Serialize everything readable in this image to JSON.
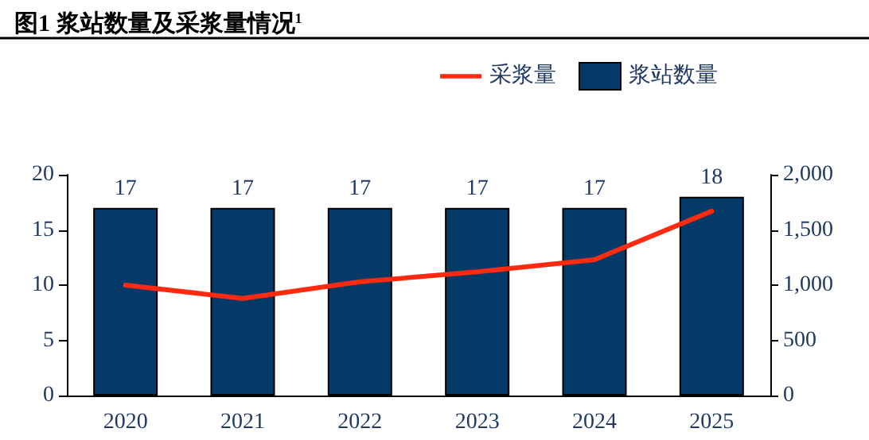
{
  "chart_data": {
    "type": "bar",
    "title": "图1 浆站数量及采浆量情况$^{1}$",
    "categories": [
      "2020",
      "2021",
      "2022",
      "2023",
      "2024",
      "2025"
    ],
    "series": [
      {
        "name": "采浆量",
        "type": "line",
        "axis": "y2",
        "color": "#ff2a0f",
        "values": [
          1000,
          880,
          1030,
          1120,
          1230,
          1670
        ]
      },
      {
        "name": "浆站数量",
        "color": "#043a68",
        "values": [
          17,
          17,
          17,
          17,
          17,
          18
        ],
        "value_labels": [
          "17",
          "17",
          "17",
          "17",
          "17",
          "18"
        ]
      }
    ],
    "ylim": [
      0,
      20
    ],
    "yticks": [
      0,
      5,
      10,
      15,
      20
    ],
    "y2lim": [
      0,
      2000
    ],
    "y2ticks": [
      0,
      {
        "value": 500,
        "label": "500"
      },
      {
        "value": 1000,
        "label": "1,000"
      },
      {
        "value": 1500,
        "label": "1,500"
      },
      {
        "value": 2000,
        "label": "2,000"
      }
    ],
    "grid": false,
    "legend": "top right",
    "marker": "none"
  }
}
